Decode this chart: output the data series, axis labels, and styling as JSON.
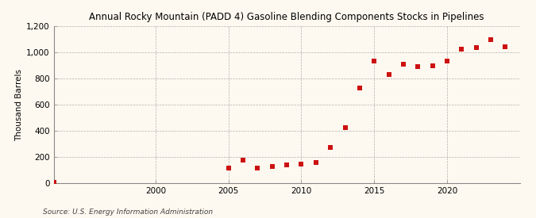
{
  "title": "Annual Rocky Mountain (PADD 4) Gasoline Blending Components Stocks in Pipelines",
  "ylabel": "Thousand Barrels",
  "source": "Source: U.S. Energy Information Administration",
  "background_color": "#fef9f0",
  "years": [
    1993,
    2005,
    2006,
    2007,
    2008,
    2009,
    2010,
    2011,
    2012,
    2013,
    2014,
    2015,
    2016,
    2017,
    2018,
    2019,
    2020,
    2021,
    2022,
    2023,
    2024
  ],
  "values": [
    5,
    115,
    175,
    115,
    130,
    140,
    145,
    160,
    270,
    425,
    730,
    935,
    830,
    910,
    890,
    900,
    935,
    1025,
    1035,
    1095,
    1045
  ],
  "marker_color": "#cc1111",
  "marker_size": 4,
  "ylim": [
    0,
    1200
  ],
  "yticks": [
    0,
    200,
    400,
    600,
    800,
    1000,
    1200
  ],
  "xlim": [
    1993,
    2025
  ],
  "xticks": [
    2000,
    2005,
    2010,
    2015,
    2020
  ],
  "title_fontsize": 8.5,
  "tick_fontsize": 7.5,
  "ylabel_fontsize": 7.5,
  "source_fontsize": 6.5
}
